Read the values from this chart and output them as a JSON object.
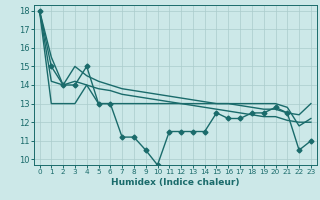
{
  "xlabel": "Humidex (Indice chaleur)",
  "bg_color": "#cce8e8",
  "grid_color": "#aacccc",
  "line_color": "#1a6b6b",
  "xlim_min": -0.5,
  "xlim_max": 23.5,
  "ylim_min": 9.7,
  "ylim_max": 18.3,
  "yticks": [
    10,
    11,
    12,
    13,
    14,
    15,
    16,
    17,
    18
  ],
  "xticks": [
    0,
    1,
    2,
    3,
    4,
    5,
    6,
    7,
    8,
    9,
    10,
    11,
    12,
    13,
    14,
    15,
    16,
    17,
    18,
    19,
    20,
    21,
    22,
    23
  ],
  "series": [
    {
      "x": [
        0,
        1,
        2,
        3,
        4,
        5,
        6,
        7,
        8,
        9,
        10,
        11,
        12,
        13,
        14,
        15,
        16,
        17,
        18,
        19,
        20,
        21,
        22,
        23
      ],
      "y": [
        18,
        15,
        14,
        14,
        15,
        13,
        13,
        11.2,
        11.2,
        10.5,
        9.7,
        11.5,
        11.5,
        11.5,
        11.5,
        12.5,
        12.2,
        12.2,
        12.5,
        12.5,
        12.8,
        12.5,
        10.5,
        11
      ],
      "marker": "D",
      "markersize": 2.5,
      "linewidth": 1.0,
      "zorder": 5
    },
    {
      "x": [
        0,
        1,
        2,
        3,
        4,
        5,
        6,
        7,
        8,
        9,
        10,
        11,
        12,
        13,
        14,
        15,
        16,
        17,
        18,
        19,
        20,
        21,
        22,
        23
      ],
      "y": [
        18,
        15.5,
        14,
        15,
        14.5,
        14.2,
        14,
        13.8,
        13.7,
        13.6,
        13.5,
        13.4,
        13.3,
        13.2,
        13.1,
        13.0,
        13.0,
        12.9,
        12.8,
        12.7,
        12.7,
        12.5,
        12.4,
        13
      ],
      "marker": null,
      "markersize": 0,
      "linewidth": 1.0,
      "zorder": 3
    },
    {
      "x": [
        0,
        1,
        2,
        3,
        4,
        5,
        6,
        7,
        8,
        9,
        10,
        11,
        12,
        13,
        14,
        15,
        16,
        17,
        18,
        19,
        20,
        21,
        22,
        23
      ],
      "y": [
        18,
        14.2,
        14,
        14.2,
        14,
        13.8,
        13.7,
        13.5,
        13.4,
        13.3,
        13.2,
        13.1,
        13.0,
        12.9,
        12.8,
        12.7,
        12.6,
        12.5,
        12.4,
        12.3,
        12.3,
        12.1,
        12.0,
        12.0
      ],
      "marker": null,
      "markersize": 0,
      "linewidth": 1.0,
      "zorder": 3
    },
    {
      "x": [
        0,
        1,
        3,
        4,
        5,
        6,
        7,
        8,
        9,
        10,
        11,
        12,
        13,
        14,
        15,
        16,
        17,
        18,
        19,
        20,
        21,
        22,
        23
      ],
      "y": [
        18,
        13,
        13,
        14,
        13,
        13,
        13,
        13,
        13,
        13,
        13,
        13,
        13,
        13,
        13,
        13,
        13,
        13,
        13,
        13,
        12.8,
        11.8,
        12.2
      ],
      "marker": null,
      "markersize": 0,
      "linewidth": 1.0,
      "zorder": 3
    }
  ]
}
